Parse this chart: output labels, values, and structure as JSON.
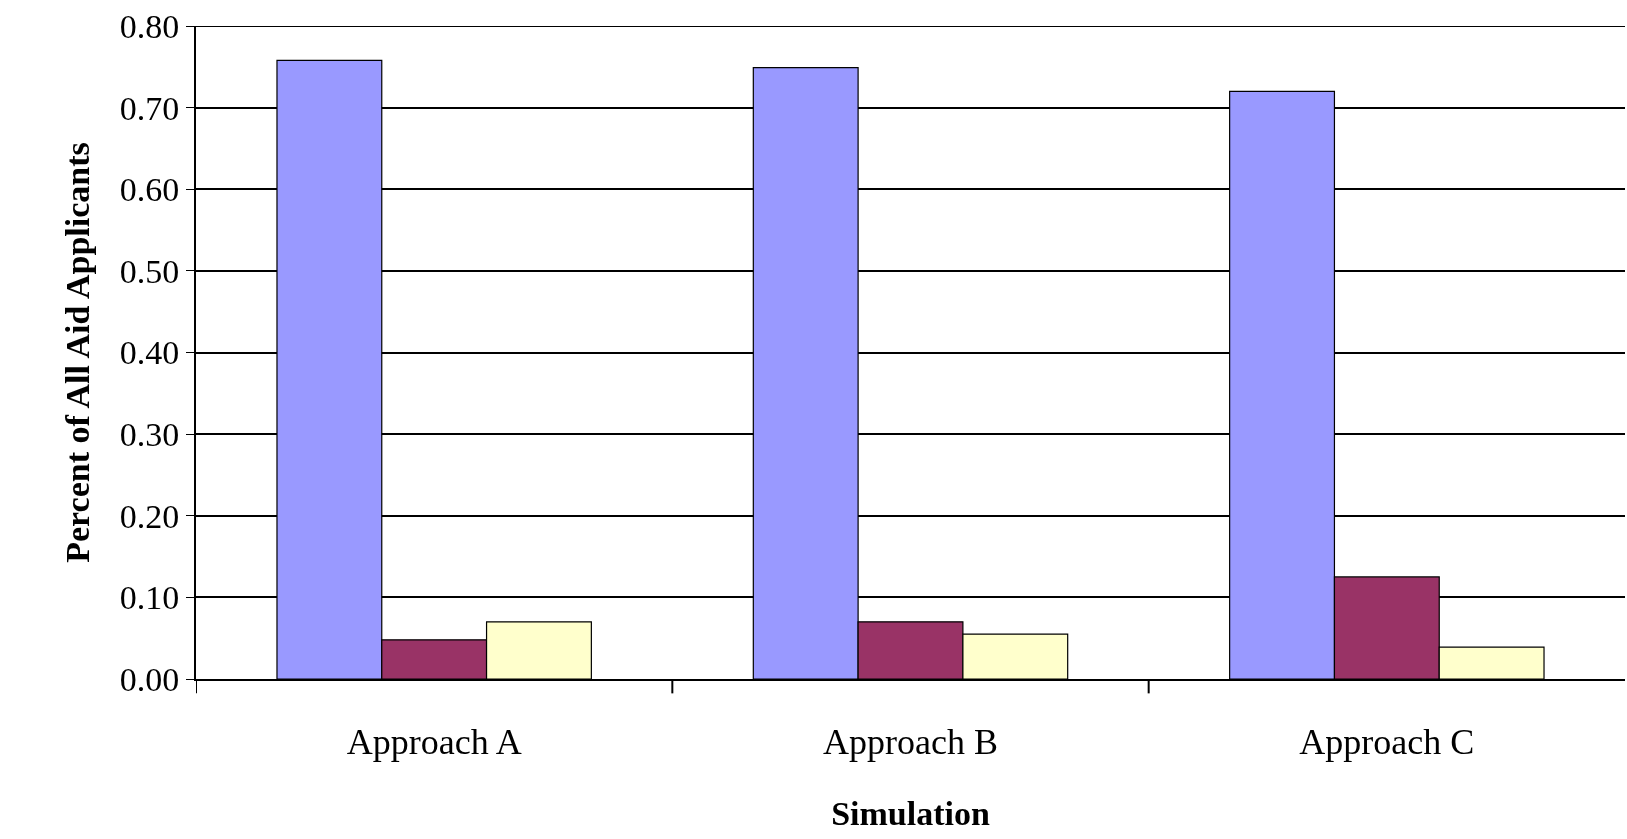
{
  "chart_data": {
    "type": "bar",
    "xlabel": "Simulation",
    "ylabel": "Percent of All Aid Applicants",
    "categories": [
      "Approach A",
      "Approach B",
      "Approach C"
    ],
    "series": [
      {
        "color": "#9999ff",
        "values": [
          0.758,
          0.749,
          0.72
        ]
      },
      {
        "color": "#993366",
        "values": [
          0.048,
          0.07,
          0.125
        ]
      },
      {
        "color": "#ffffcc",
        "values": [
          0.07,
          0.055,
          0.039
        ]
      }
    ],
    "ylim": [
      0,
      0.8
    ],
    "yticks": [
      {
        "value": 0,
        "label": "0.00"
      },
      {
        "value": 0.1,
        "label": "0.10"
      },
      {
        "value": 0.2,
        "label": "0.20"
      },
      {
        "value": 0.3,
        "label": "0.30"
      },
      {
        "value": 0.4,
        "label": "0.40"
      },
      {
        "value": 0.5,
        "label": "0.50"
      },
      {
        "value": 0.6,
        "label": "0.60"
      },
      {
        "value": 0.7,
        "label": "0.70"
      },
      {
        "value": 0.8,
        "label": "0.80"
      }
    ],
    "grid": "y"
  }
}
